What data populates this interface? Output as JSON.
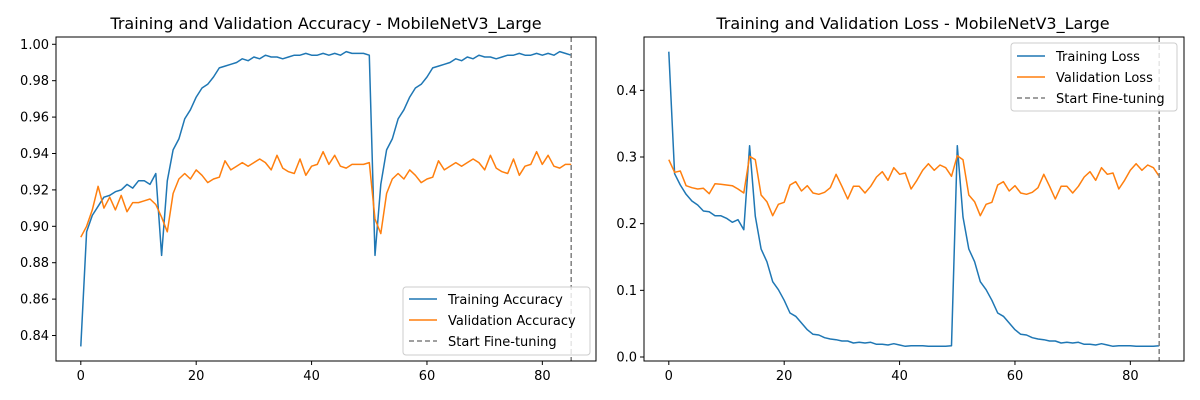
{
  "chart_data": [
    {
      "type": "line",
      "title": "Training and Validation Accuracy - MobileNetV3_Large",
      "xlabel": "",
      "ylabel": "",
      "xlim": [
        -4.3,
        89.3
      ],
      "ylim": [
        0.826,
        1.004
      ],
      "xticks": [
        0,
        20,
        40,
        60,
        80
      ],
      "yticks": [
        0.84,
        0.86,
        0.88,
        0.9,
        0.92,
        0.94,
        0.96,
        0.98,
        1.0
      ],
      "ytick_labels": [
        "0.84",
        "0.86",
        "0.88",
        "0.90",
        "0.92",
        "0.94",
        "0.96",
        "0.98",
        "1.00"
      ],
      "grid": false,
      "legend_position": "lower-right",
      "vline": {
        "x": 85,
        "name": "Start Fine-tuning",
        "color": "#808080",
        "style": "dashed"
      },
      "series": [
        {
          "name": "Training Accuracy",
          "color": "#1f77b4",
          "x": [
            0,
            1,
            2,
            3,
            4,
            5,
            6,
            7,
            8,
            9,
            10,
            11,
            12,
            13,
            14,
            15,
            16,
            17,
            18,
            19,
            20,
            21,
            22,
            23,
            24,
            25,
            26,
            27,
            28,
            29,
            30,
            31,
            32,
            33,
            34,
            35,
            36,
            37,
            38,
            39,
            40,
            41,
            42,
            43,
            44,
            45,
            46,
            47,
            48,
            49,
            50,
            51,
            52,
            53,
            54,
            55,
            56,
            57,
            58,
            59,
            60,
            61,
            62,
            63,
            64,
            65,
            66,
            67,
            68,
            69,
            70,
            71,
            72,
            73,
            74,
            75,
            76,
            77,
            78,
            79,
            80,
            81,
            82,
            83,
            84,
            85
          ],
          "values": [
            0.834,
            0.897,
            0.906,
            0.911,
            0.916,
            0.917,
            0.919,
            0.92,
            0.923,
            0.921,
            0.925,
            0.925,
            0.923,
            0.929,
            0.884,
            0.925,
            0.942,
            0.948,
            0.959,
            0.964,
            0.971,
            0.976,
            0.978,
            0.982,
            0.987,
            0.988,
            0.989,
            0.99,
            0.992,
            0.991,
            0.993,
            0.992,
            0.994,
            0.993,
            0.993,
            0.992,
            0.993,
            0.994,
            0.994,
            0.995,
            0.994,
            0.994,
            0.995,
            0.994,
            0.995,
            0.994,
            0.996,
            0.995,
            0.995,
            0.995,
            0.994,
            0.884,
            0.923,
            0.942,
            0.948,
            0.959,
            0.964,
            0.971,
            0.976,
            0.978,
            0.982,
            0.987,
            0.988,
            0.989,
            0.99,
            0.992,
            0.991,
            0.993,
            0.992,
            0.994,
            0.993,
            0.993,
            0.992,
            0.993,
            0.994,
            0.994,
            0.995,
            0.994,
            0.994,
            0.995,
            0.994,
            0.995,
            0.994,
            0.996,
            0.995,
            0.994
          ]
        },
        {
          "name": "Validation Accuracy",
          "color": "#ff7f0e",
          "x": [
            0,
            1,
            2,
            3,
            4,
            5,
            6,
            7,
            8,
            9,
            10,
            11,
            12,
            13,
            14,
            15,
            16,
            17,
            18,
            19,
            20,
            21,
            22,
            23,
            24,
            25,
            26,
            27,
            28,
            29,
            30,
            31,
            32,
            33,
            34,
            35,
            36,
            37,
            38,
            39,
            40,
            41,
            42,
            43,
            44,
            45,
            46,
            47,
            48,
            49,
            50,
            51,
            52,
            53,
            54,
            55,
            56,
            57,
            58,
            59,
            60,
            61,
            62,
            63,
            64,
            65,
            66,
            67,
            68,
            69,
            70,
            71,
            72,
            73,
            74,
            75,
            76,
            77,
            78,
            79,
            80,
            81,
            82,
            83,
            84,
            85
          ],
          "values": [
            0.894,
            0.9,
            0.909,
            0.922,
            0.91,
            0.916,
            0.909,
            0.917,
            0.908,
            0.913,
            0.913,
            0.914,
            0.915,
            0.912,
            0.905,
            0.897,
            0.918,
            0.926,
            0.929,
            0.926,
            0.931,
            0.928,
            0.924,
            0.926,
            0.927,
            0.936,
            0.931,
            0.933,
            0.935,
            0.933,
            0.935,
            0.937,
            0.935,
            0.931,
            0.939,
            0.932,
            0.93,
            0.929,
            0.937,
            0.928,
            0.933,
            0.934,
            0.941,
            0.934,
            0.939,
            0.933,
            0.932,
            0.934,
            0.934,
            0.934,
            0.935,
            0.904,
            0.896,
            0.918,
            0.926,
            0.929,
            0.926,
            0.931,
            0.928,
            0.924,
            0.926,
            0.927,
            0.936,
            0.931,
            0.933,
            0.935,
            0.933,
            0.935,
            0.937,
            0.935,
            0.931,
            0.939,
            0.932,
            0.93,
            0.929,
            0.937,
            0.928,
            0.933,
            0.934,
            0.941,
            0.934,
            0.939,
            0.933,
            0.932,
            0.934,
            0.934
          ]
        }
      ]
    },
    {
      "type": "line",
      "title": "Training and Validation Loss - MobileNetV3_Large",
      "xlabel": "",
      "ylabel": "",
      "xlim": [
        -4.3,
        89.3
      ],
      "ylim": [
        -0.006,
        0.48
      ],
      "xticks": [
        0,
        20,
        40,
        60,
        80
      ],
      "yticks": [
        0.0,
        0.1,
        0.2,
        0.3,
        0.4
      ],
      "ytick_labels": [
        "0.0",
        "0.1",
        "0.2",
        "0.3",
        "0.4"
      ],
      "grid": false,
      "legend_position": "upper-right",
      "vline": {
        "x": 85,
        "name": "Start Fine-tuning",
        "color": "#808080",
        "style": "dashed"
      },
      "series": [
        {
          "name": "Training Loss",
          "color": "#1f77b4",
          "x": [
            0,
            1,
            2,
            3,
            4,
            5,
            6,
            7,
            8,
            9,
            10,
            11,
            12,
            13,
            14,
            15,
            16,
            17,
            18,
            19,
            20,
            21,
            22,
            23,
            24,
            25,
            26,
            27,
            28,
            29,
            30,
            31,
            32,
            33,
            34,
            35,
            36,
            37,
            38,
            39,
            40,
            41,
            42,
            43,
            44,
            45,
            46,
            47,
            48,
            49,
            50,
            51,
            52,
            53,
            54,
            55,
            56,
            57,
            58,
            59,
            60,
            61,
            62,
            63,
            64,
            65,
            66,
            67,
            68,
            69,
            70,
            71,
            72,
            73,
            74,
            75,
            76,
            77,
            78,
            79,
            80,
            81,
            82,
            83,
            84,
            85
          ],
          "values": [
            0.458,
            0.275,
            0.258,
            0.244,
            0.234,
            0.228,
            0.219,
            0.218,
            0.212,
            0.212,
            0.208,
            0.202,
            0.206,
            0.191,
            0.317,
            0.211,
            0.162,
            0.143,
            0.113,
            0.101,
            0.085,
            0.066,
            0.061,
            0.051,
            0.041,
            0.034,
            0.033,
            0.029,
            0.027,
            0.026,
            0.024,
            0.024,
            0.021,
            0.022,
            0.021,
            0.022,
            0.019,
            0.019,
            0.018,
            0.02,
            0.018,
            0.016,
            0.017,
            0.017,
            0.017,
            0.016,
            0.016,
            0.016,
            0.016,
            0.017,
            0.317,
            0.21,
            0.162,
            0.143,
            0.113,
            0.101,
            0.085,
            0.066,
            0.061,
            0.051,
            0.041,
            0.034,
            0.033,
            0.029,
            0.027,
            0.026,
            0.024,
            0.024,
            0.021,
            0.022,
            0.021,
            0.022,
            0.019,
            0.019,
            0.018,
            0.02,
            0.018,
            0.016,
            0.017,
            0.017,
            0.017,
            0.016,
            0.016,
            0.016,
            0.016,
            0.017
          ]
        },
        {
          "name": "Validation Loss",
          "color": "#ff7f0e",
          "x": [
            0,
            1,
            2,
            3,
            4,
            5,
            6,
            7,
            8,
            9,
            10,
            11,
            12,
            13,
            14,
            15,
            16,
            17,
            18,
            19,
            20,
            21,
            22,
            23,
            24,
            25,
            26,
            27,
            28,
            29,
            30,
            31,
            32,
            33,
            34,
            35,
            36,
            37,
            38,
            39,
            40,
            41,
            42,
            43,
            44,
            45,
            46,
            47,
            48,
            49,
            50,
            51,
            52,
            53,
            54,
            55,
            56,
            57,
            58,
            59,
            60,
            61,
            62,
            63,
            64,
            65,
            66,
            67,
            68,
            69,
            70,
            71,
            72,
            73,
            74,
            75,
            76,
            77,
            78,
            79,
            80,
            81,
            82,
            83,
            84,
            85
          ],
          "values": [
            0.296,
            0.277,
            0.279,
            0.257,
            0.254,
            0.252,
            0.253,
            0.245,
            0.26,
            0.259,
            0.258,
            0.257,
            0.252,
            0.246,
            0.301,
            0.296,
            0.243,
            0.233,
            0.212,
            0.229,
            0.232,
            0.258,
            0.263,
            0.249,
            0.257,
            0.246,
            0.244,
            0.247,
            0.254,
            0.274,
            0.256,
            0.237,
            0.256,
            0.256,
            0.246,
            0.256,
            0.27,
            0.278,
            0.265,
            0.284,
            0.274,
            0.276,
            0.252,
            0.265,
            0.28,
            0.29,
            0.28,
            0.288,
            0.284,
            0.271,
            0.302,
            0.296,
            0.243,
            0.233,
            0.212,
            0.229,
            0.232,
            0.258,
            0.263,
            0.249,
            0.257,
            0.246,
            0.244,
            0.247,
            0.254,
            0.274,
            0.256,
            0.237,
            0.256,
            0.256,
            0.246,
            0.256,
            0.27,
            0.278,
            0.265,
            0.284,
            0.274,
            0.276,
            0.252,
            0.265,
            0.28,
            0.29,
            0.28,
            0.288,
            0.284,
            0.271
          ]
        }
      ]
    }
  ]
}
